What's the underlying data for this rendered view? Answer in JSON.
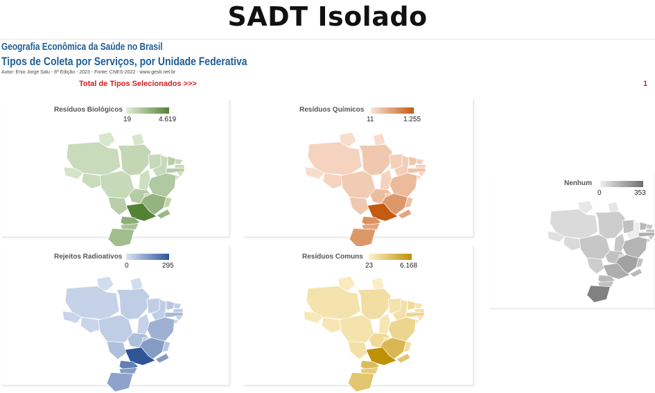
{
  "page_title": "SADT Isolado",
  "header": {
    "line1": "Geografia Econômica da Saúde no Brasil",
    "line2": "Tipos de Coleta por Serviços, por Unidade Federativa",
    "author": "Autor: Enio Jorge Salu - 6ª Edição - 2023 - Fonte: CNES-2022 - www.gesb.net.br",
    "total_label": "Total de Tipos Selecionados >>>",
    "total_value": "1"
  },
  "maps": [
    {
      "id": "biologicos",
      "title": "Resíduos Biológicos",
      "min": "19",
      "max": "4.619",
      "color_low": "#e2efd9",
      "color_high": "#548235",
      "values": {
        "AM": 0.18,
        "PA": 0.22,
        "AC": 0.1,
        "RO": 0.18,
        "RR": 0.08,
        "AP": 0.08,
        "MT": 0.2,
        "MS": 0.3,
        "TO": 0.15,
        "MA": 0.2,
        "PI": 0.2,
        "CE": 0.3,
        "RN": 0.2,
        "PB": 0.2,
        "PE": 0.32,
        "AL": 0.15,
        "SE": 0.12,
        "BA": 0.35,
        "GO": 0.32,
        "DF": 0.2,
        "MG": 0.55,
        "ES": 0.25,
        "RJ": 0.5,
        "SP": 1.0,
        "PR": 0.6,
        "SC": 0.4,
        "RS": 0.45
      }
    },
    {
      "id": "quimicos",
      "title": "Resíduos Químicos",
      "min": "11",
      "max": "1.255",
      "color_low": "#fbe4d6",
      "color_high": "#c55a11",
      "values": {
        "AM": 0.12,
        "PA": 0.2,
        "AC": 0.05,
        "RO": 0.12,
        "RR": 0.05,
        "AP": 0.05,
        "MT": 0.18,
        "MS": 0.2,
        "TO": 0.12,
        "MA": 0.15,
        "PI": 0.15,
        "CE": 0.22,
        "RN": 0.15,
        "PB": 0.15,
        "PE": 0.25,
        "AL": 0.12,
        "SE": 0.1,
        "BA": 0.3,
        "GO": 0.28,
        "DF": 0.18,
        "MG": 0.55,
        "ES": 0.25,
        "RJ": 0.45,
        "SP": 1.0,
        "PR": 0.6,
        "SC": 0.45,
        "RS": 0.55
      }
    },
    {
      "id": "radioativos",
      "title": "Rejeitos Radioativos",
      "min": "0",
      "max": "295",
      "color_low": "#dae3f3",
      "color_high": "#2f5597",
      "values": {
        "AM": 0.12,
        "PA": 0.15,
        "AC": 0.1,
        "RO": 0.1,
        "RR": 0.05,
        "AP": 0.05,
        "MT": 0.15,
        "MS": 0.25,
        "TO": 0.12,
        "MA": 0.15,
        "PI": 0.15,
        "CE": 0.2,
        "RN": 0.15,
        "PB": 0.18,
        "PE": 0.3,
        "AL": 0.15,
        "SE": 0.12,
        "BA": 0.35,
        "GO": 0.25,
        "DF": 0.18,
        "MG": 0.5,
        "ES": 0.2,
        "RJ": 0.5,
        "SP": 1.0,
        "PR": 0.7,
        "SC": 0.5,
        "RS": 0.45
      }
    },
    {
      "id": "comuns",
      "title": "Resíduos Comuns",
      "min": "23",
      "max": "6.168",
      "color_low": "#fff2cc",
      "color_high": "#bf9000",
      "values": {
        "AM": 0.15,
        "PA": 0.2,
        "AC": 0.1,
        "RO": 0.12,
        "RR": 0.08,
        "AP": 0.05,
        "MT": 0.15,
        "MS": 0.18,
        "TO": 0.12,
        "MA": 0.15,
        "PI": 0.18,
        "CE": 0.25,
        "RN": 0.15,
        "PB": 0.18,
        "PE": 0.3,
        "AL": 0.15,
        "SE": 0.12,
        "BA": 0.3,
        "GO": 0.25,
        "DF": 0.18,
        "MG": 0.6,
        "ES": 0.2,
        "RJ": 0.45,
        "SP": 1.0,
        "PR": 0.55,
        "SC": 0.4,
        "RS": 0.45
      }
    },
    {
      "id": "nenhum",
      "title": "Nenhum",
      "min": "0",
      "max": "353",
      "color_low": "#ededed",
      "color_high": "#6e6e6e",
      "values": {
        "AM": 0.15,
        "PA": 0.25,
        "AC": 0.1,
        "RO": 0.15,
        "RR": 0.05,
        "AP": 0.05,
        "MT": 0.3,
        "MS": 0.25,
        "TO": 0.3,
        "MA": 0.35,
        "PI": 0.0,
        "CE": 0.4,
        "RN": 0.3,
        "PB": 0.3,
        "PE": 0.5,
        "AL": 0.3,
        "SE": 0.25,
        "BA": 0.45,
        "GO": 0.35,
        "DF": 0.2,
        "MG": 0.6,
        "ES": 0.35,
        "RJ": 0.4,
        "SP": 0.5,
        "PR": 0.4,
        "SC": 0.35,
        "RS": 0.85
      }
    }
  ]
}
